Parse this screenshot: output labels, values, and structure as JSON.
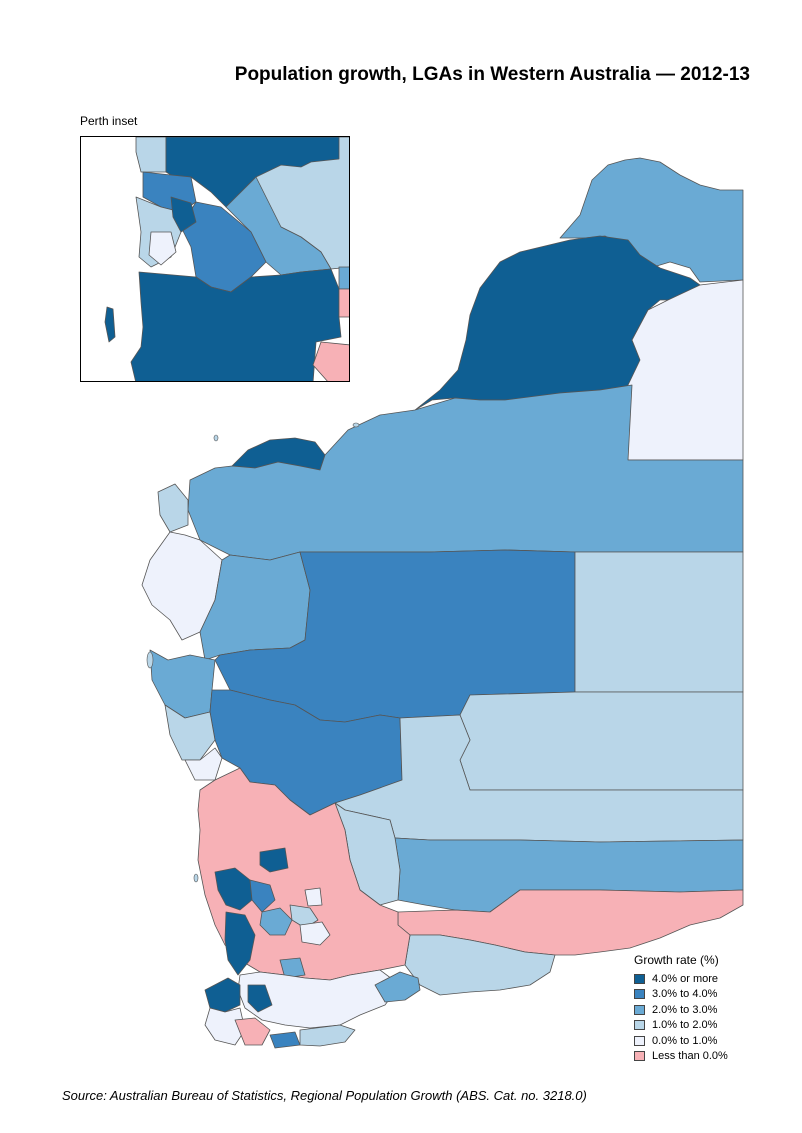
{
  "title": "Population growth, LGAs in Western Australia — 2012-13",
  "inset_label": "Perth inset",
  "legend": {
    "title": "Growth rate (%)",
    "items": [
      {
        "label": "4.0% or more",
        "color": "#0f5f93"
      },
      {
        "label": "3.0% to 4.0%",
        "color": "#3a83bf"
      },
      {
        "label": "2.0% to 3.0%",
        "color": "#6aaad4"
      },
      {
        "label": "1.0% to 2.0%",
        "color": "#b9d6e8"
      },
      {
        "label": "0.0% to 1.0%",
        "color": "#eef2fc"
      },
      {
        "label": "Less than 0.0%",
        "color": "#f7b1b6"
      }
    ]
  },
  "source": "Source:  Australian Bureau of Statistics, Regional Population Growth (ABS. Cat. no. 3218.0)"
}
